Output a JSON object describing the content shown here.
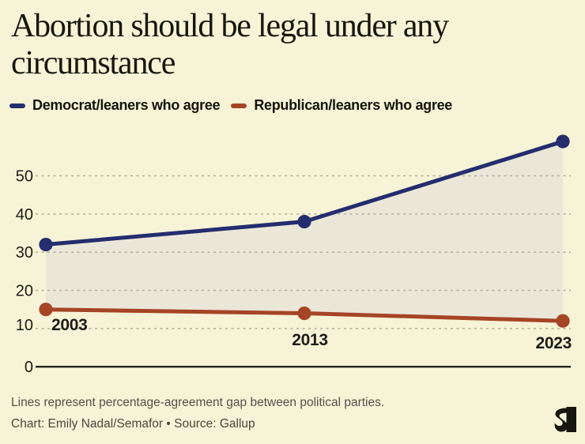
{
  "header": {
    "title": "Abortion should be legal under any circumstance"
  },
  "chart_data": {
    "type": "line",
    "categories": [
      "2003",
      "2013",
      "2023"
    ],
    "series": [
      {
        "name": "Democrat/leaners who agree",
        "color": "#242d6e",
        "values": [
          32,
          38,
          59
        ]
      },
      {
        "name": "Republican/leaners who agree",
        "color": "#a64426",
        "values": [
          15,
          14,
          12
        ]
      }
    ],
    "yticks": [
      0,
      10,
      20,
      30,
      40,
      50
    ],
    "ylim": [
      0,
      60
    ],
    "xlabel": "",
    "ylabel": "",
    "grid": "horizontal-dotted",
    "legend_position": "top",
    "area_between_series": true,
    "area_fill": "#e9e6d8"
  },
  "footer": {
    "note": "Lines represent percentage-agreement gap between political parties.",
    "credit": "Chart: Emily Nadal/Semafor • Source: Gallup",
    "logo": "semafor-logo"
  },
  "colors": {
    "background": "#f7f3d6",
    "democrat": "#242d6e",
    "republican": "#a64426",
    "gridline": "#b2ae9e",
    "axis": "#23231c",
    "title_text": "#17170f",
    "footer_text": "#53514a"
  }
}
